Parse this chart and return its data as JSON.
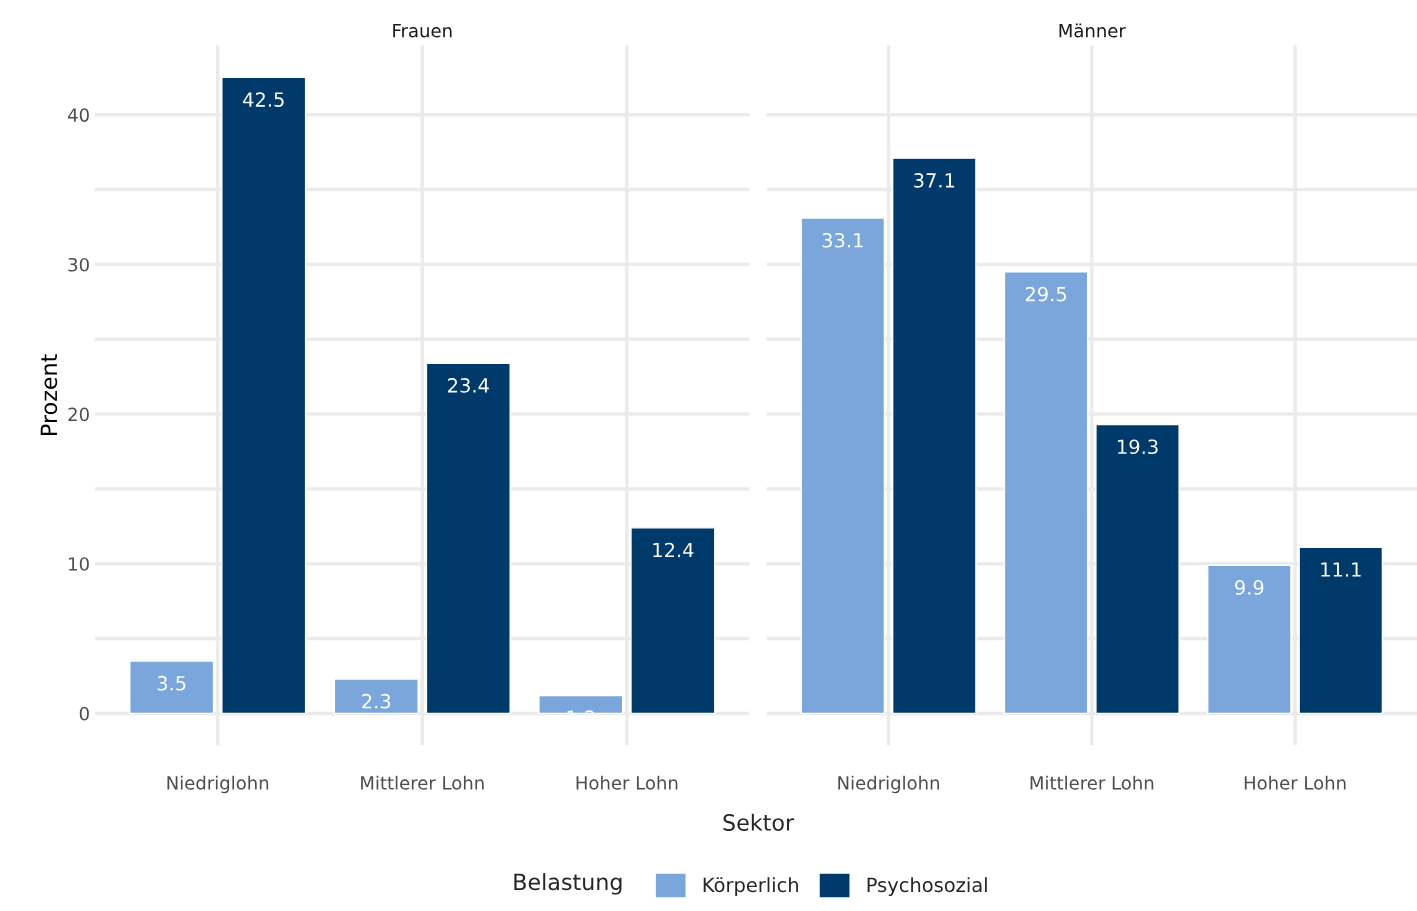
{
  "chart_data": [
    {
      "type": "bar",
      "title": "Frauen",
      "categories": [
        "Niedriglohn",
        "Mittlerer Lohn",
        "Hoher Lohn"
      ],
      "series": [
        {
          "name": "Körperlich",
          "color": "#7ba6db",
          "values": [
            3.5,
            2.3,
            1.2
          ]
        },
        {
          "name": "Psychosozial",
          "color": "#003a6b",
          "values": [
            42.5,
            23.4,
            12.4
          ]
        }
      ],
      "xlabel": "Sektor",
      "ylabel": "Prozent",
      "legend_title": "Belastung",
      "legend": "bottom",
      "ylim": [
        -2.125,
        44.625
      ],
      "yticks": [
        0,
        {
          "value": 5,
          "label": null
        },
        10,
        {
          "value": 15,
          "label": null
        },
        20,
        {
          "value": 25,
          "label": null
        },
        30,
        {
          "value": 35,
          "label": null
        },
        40
      ],
      "grid": true,
      "data_labels": true
    },
    {
      "type": "bar",
      "title": "Männer",
      "categories": [
        "Niedriglohn",
        "Mittlerer Lohn",
        "Hoher Lohn"
      ],
      "series": [
        {
          "color": "#7ba6db",
          "values": [
            33.1,
            29.5,
            9.9
          ]
        },
        {
          "color": "#003a6b",
          "values": [
            37.1,
            19.3,
            11.1
          ]
        }
      ],
      "ylim": [
        -2.125,
        44.625
      ],
      "yticks": [
        0,
        {
          "value": 5,
          "label": null
        },
        10,
        {
          "value": 15,
          "label": null
        },
        20,
        {
          "value": 25,
          "label": null
        },
        30,
        {
          "value": 35,
          "label": null
        },
        40
      ],
      "grid": true,
      "data_labels": true,
      "tick_labels": "x"
    }
  ]
}
